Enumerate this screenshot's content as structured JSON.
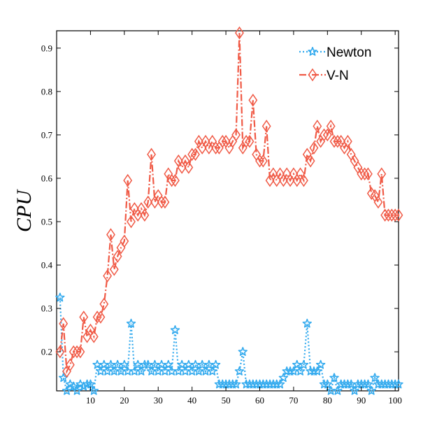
{
  "chart_data": {
    "type": "line",
    "title": "",
    "xlabel": "",
    "ylabel": "CPU",
    "xlim": [
      0,
      101
    ],
    "ylim": [
      0.11,
      0.94
    ],
    "xticks": [
      10,
      20,
      30,
      40,
      50,
      60,
      70,
      80,
      90,
      100
    ],
    "yticks": [
      0.2,
      0.3,
      0.4,
      0.5,
      0.6,
      0.7,
      0.8,
      0.9
    ],
    "xtick_labels": [
      "10",
      "20",
      "30",
      "40",
      "50",
      "60",
      "70",
      "80",
      "90",
      "100"
    ],
    "ytick_labels": [
      "0.2",
      "0.3",
      "0.4",
      "0.5",
      "0.6",
      "0.7",
      "0.8",
      "0.9"
    ],
    "grid": false,
    "legend_position": "top-right",
    "series": [
      {
        "name": "Newton",
        "color": "#33aaee",
        "marker": "star",
        "line_style": "dotted",
        "x": [
          1,
          2,
          3,
          4,
          5,
          6,
          7,
          8,
          9,
          10,
          11,
          12,
          13,
          14,
          15,
          16,
          17,
          18,
          19,
          20,
          21,
          22,
          23,
          24,
          25,
          26,
          27,
          28,
          29,
          30,
          31,
          32,
          33,
          34,
          35,
          36,
          37,
          38,
          39,
          40,
          41,
          42,
          43,
          44,
          45,
          46,
          47,
          48,
          49,
          50,
          51,
          52,
          53,
          54,
          55,
          56,
          57,
          58,
          59,
          60,
          61,
          62,
          63,
          64,
          65,
          66,
          67,
          68,
          69,
          70,
          71,
          72,
          73,
          74,
          75,
          76,
          77,
          78,
          79,
          80,
          81,
          82,
          83,
          84,
          85,
          86,
          87,
          88,
          89,
          90,
          91,
          92,
          93,
          94,
          95,
          96,
          97,
          98,
          99,
          100,
          101
        ],
        "values": [
          0.325,
          0.14,
          0.11,
          0.125,
          0.12,
          0.11,
          0.125,
          0.12,
          0.125,
          0.125,
          0.11,
          0.17,
          0.155,
          0.17,
          0.155,
          0.17,
          0.155,
          0.17,
          0.155,
          0.17,
          0.155,
          0.265,
          0.155,
          0.17,
          0.155,
          0.17,
          0.17,
          0.155,
          0.17,
          0.155,
          0.17,
          0.155,
          0.17,
          0.155,
          0.25,
          0.155,
          0.17,
          0.155,
          0.17,
          0.155,
          0.17,
          0.155,
          0.17,
          0.155,
          0.17,
          0.155,
          0.17,
          0.125,
          0.125,
          0.125,
          0.125,
          0.125,
          0.125,
          0.155,
          0.2,
          0.125,
          0.125,
          0.125,
          0.125,
          0.125,
          0.125,
          0.125,
          0.125,
          0.125,
          0.125,
          0.125,
          0.14,
          0.155,
          0.155,
          0.155,
          0.17,
          0.155,
          0.17,
          0.265,
          0.155,
          0.155,
          0.155,
          0.17,
          0.125,
          0.125,
          0.11,
          0.14,
          0.11,
          0.125,
          0.125,
          0.125,
          0.125,
          0.11,
          0.125,
          0.125,
          0.125,
          0.125,
          0.11,
          0.14,
          0.125,
          0.125,
          0.125,
          0.125,
          0.125,
          0.125,
          0.125
        ]
      },
      {
        "name": "V-N",
        "color": "#f05a46",
        "marker": "diamond",
        "line_style": "dashdot",
        "x": [
          1,
          2,
          3,
          4,
          5,
          6,
          7,
          8,
          9,
          10,
          11,
          12,
          13,
          14,
          15,
          16,
          17,
          18,
          19,
          20,
          21,
          22,
          23,
          24,
          25,
          26,
          27,
          28,
          29,
          30,
          31,
          32,
          33,
          34,
          35,
          36,
          37,
          38,
          39,
          40,
          41,
          42,
          43,
          44,
          45,
          46,
          47,
          48,
          49,
          50,
          51,
          52,
          53,
          54,
          55,
          56,
          57,
          58,
          59,
          60,
          61,
          62,
          63,
          64,
          65,
          66,
          67,
          68,
          69,
          70,
          71,
          72,
          73,
          74,
          75,
          76,
          77,
          78,
          79,
          80,
          81,
          82,
          83,
          84,
          85,
          86,
          87,
          88,
          89,
          90,
          91,
          92,
          93,
          94,
          95,
          96,
          97,
          98,
          99,
          100,
          101
        ],
        "values": [
          0.2,
          0.265,
          0.155,
          0.17,
          0.2,
          0.2,
          0.2,
          0.28,
          0.235,
          0.25,
          0.235,
          0.28,
          0.28,
          0.31,
          0.375,
          0.47,
          0.39,
          0.42,
          0.44,
          0.455,
          0.595,
          0.5,
          0.53,
          0.515,
          0.53,
          0.515,
          0.545,
          0.655,
          0.545,
          0.56,
          0.545,
          0.545,
          0.61,
          0.595,
          0.595,
          0.64,
          0.625,
          0.64,
          0.625,
          0.655,
          0.655,
          0.685,
          0.67,
          0.685,
          0.67,
          0.685,
          0.67,
          0.67,
          0.685,
          0.685,
          0.67,
          0.685,
          0.7,
          0.935,
          0.67,
          0.685,
          0.685,
          0.78,
          0.655,
          0.64,
          0.64,
          0.72,
          0.595,
          0.61,
          0.595,
          0.61,
          0.595,
          0.61,
          0.595,
          0.61,
          0.595,
          0.61,
          0.595,
          0.655,
          0.64,
          0.67,
          0.72,
          0.685,
          0.7,
          0.7,
          0.72,
          0.685,
          0.685,
          0.685,
          0.67,
          0.685,
          0.655,
          0.64,
          0.625,
          0.61,
          0.61,
          0.61,
          0.565,
          0.56,
          0.545,
          0.61,
          0.515,
          0.515,
          0.515,
          0.515,
          0.515
        ]
      }
    ]
  }
}
